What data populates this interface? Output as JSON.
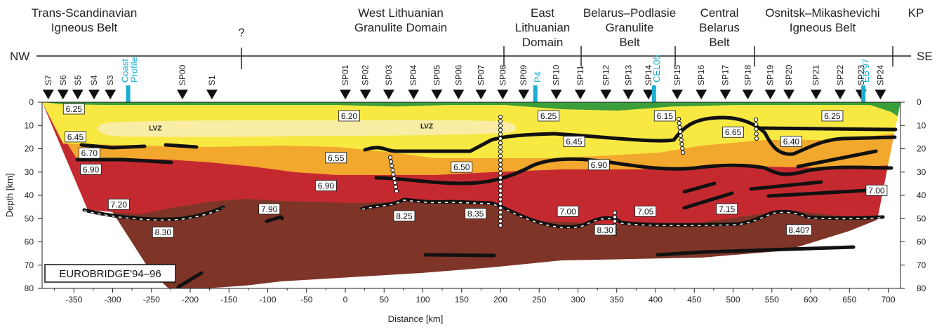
{
  "provinces": [
    {
      "line1": "Trans-Scandinavian",
      "line2": "Igneous Belt",
      "line3": ""
    },
    {
      "line1": "?",
      "line2": "",
      "line3": ""
    },
    {
      "line1": "West Lithuanian",
      "line2": "Granulite Domain",
      "line3": ""
    },
    {
      "line1": "East",
      "line2": "Lithuanian",
      "line3": "Domain"
    },
    {
      "line1": "Belarus–Podlasie",
      "line2": "Granulite",
      "line3": "Belt"
    },
    {
      "line1": "Central",
      "line2": "Belarus",
      "line3": "Belt"
    },
    {
      "line1": "Osnitsk–Mikashevichi",
      "line2": "Igneous Belt",
      "line3": ""
    },
    {
      "line1": "KP",
      "line2": "",
      "line3": ""
    }
  ],
  "direction": {
    "left": "NW",
    "right": "SE"
  },
  "shotpoints": [
    {
      "label": "S7",
      "x": -383,
      "cyan": false
    },
    {
      "label": "S6",
      "x": -364,
      "cyan": false
    },
    {
      "label": "S5",
      "x": -345,
      "cyan": false
    },
    {
      "label": "S4",
      "x": -324,
      "cyan": false
    },
    {
      "label": "S3",
      "x": -303,
      "cyan": false
    },
    {
      "label": "SP00",
      "x": -210,
      "cyan": false
    },
    {
      "label": "S1",
      "x": -172,
      "cyan": false
    },
    {
      "label": "SP01",
      "x": 0,
      "cyan": false
    },
    {
      "label": "SP02",
      "x": 26,
      "cyan": false
    },
    {
      "label": "SP03",
      "x": 56,
      "cyan": false
    },
    {
      "label": "SP04",
      "x": 88,
      "cyan": false
    },
    {
      "label": "SP05",
      "x": 118,
      "cyan": false
    },
    {
      "label": "SP06",
      "x": 146,
      "cyan": false
    },
    {
      "label": "SP07",
      "x": 175,
      "cyan": false
    },
    {
      "label": "SP08",
      "x": 203,
      "cyan": false
    },
    {
      "label": "SP09",
      "x": 230,
      "cyan": false
    },
    {
      "label": "SP10",
      "x": 272,
      "cyan": false
    },
    {
      "label": "SP11",
      "x": 303,
      "cyan": false
    },
    {
      "label": "SP12",
      "x": 336,
      "cyan": false
    },
    {
      "label": "SP13",
      "x": 365,
      "cyan": false
    },
    {
      "label": "SP14",
      "x": 391,
      "cyan": false
    },
    {
      "label": "SP15",
      "x": 428,
      "cyan": false
    },
    {
      "label": "SP16",
      "x": 459,
      "cyan": false
    },
    {
      "label": "SP17",
      "x": 490,
      "cyan": false
    },
    {
      "label": "SP18",
      "x": 519,
      "cyan": false
    },
    {
      "label": "SP19",
      "x": 548,
      "cyan": false
    },
    {
      "label": "SP20",
      "x": 572,
      "cyan": false
    },
    {
      "label": "SP21",
      "x": 607,
      "cyan": false
    },
    {
      "label": "SP22",
      "x": 638,
      "cyan": false
    },
    {
      "label": "SP23",
      "x": 665,
      "cyan": false
    },
    {
      "label": "SP24",
      "x": 690,
      "cyan": false
    }
  ],
  "cyan_shotpoints": [
    {
      "line1": "Coast",
      "line2": "Profile",
      "x": -280
    },
    {
      "line1": "P4",
      "line2": "",
      "x": 245
    },
    {
      "line1": "CEL05",
      "line2": "",
      "x": 398
    },
    {
      "line1": "EB'97",
      "line2": "",
      "x": 668
    }
  ],
  "velocities": [
    {
      "text": "6.25",
      "x": -350,
      "depth": 3
    },
    {
      "text": "6.20",
      "x": 5,
      "depth": 6
    },
    {
      "text": "6.25",
      "x": 262,
      "depth": 6
    },
    {
      "text": "6.15",
      "x": 412,
      "depth": 6
    },
    {
      "text": "6.25",
      "x": 628,
      "depth": 6
    },
    {
      "text": "6.45",
      "x": -348,
      "depth": 15
    },
    {
      "text": "6.65",
      "x": 500,
      "depth": 13
    },
    {
      "text": "6.40",
      "x": 575,
      "depth": 17
    },
    {
      "text": "6.70",
      "x": -330,
      "depth": 22
    },
    {
      "text": "6.45",
      "x": 295,
      "depth": 17
    },
    {
      "text": "6.55",
      "x": -12,
      "depth": 24
    },
    {
      "text": "6.90",
      "x": -328,
      "depth": 29
    },
    {
      "text": "6.50",
      "x": 150,
      "depth": 28
    },
    {
      "text": "6.90",
      "x": 327,
      "depth": 27
    },
    {
      "text": "6.90",
      "x": -25,
      "depth": 36
    },
    {
      "text": "7.00",
      "x": 685,
      "depth": 38
    },
    {
      "text": "7.20",
      "x": -292,
      "depth": 44
    },
    {
      "text": "7.90",
      "x": -98,
      "depth": 46
    },
    {
      "text": "7.00",
      "x": 287,
      "depth": 47
    },
    {
      "text": "7.05",
      "x": 387,
      "depth": 47
    },
    {
      "text": "7.15",
      "x": 492,
      "depth": 46
    },
    {
      "text": "8.25",
      "x": 76,
      "depth": 49
    },
    {
      "text": "8.35",
      "x": 168,
      "depth": 48
    },
    {
      "text": "8.30",
      "x": -235,
      "depth": 56
    },
    {
      "text": "8.30",
      "x": 335,
      "depth": 55
    },
    {
      "text": "8.40?",
      "x": 585,
      "depth": 55
    }
  ],
  "lvz": [
    {
      "text": "LVZ",
      "x": -245,
      "depth": 11
    },
    {
      "text": "LVZ",
      "x": 105,
      "depth": 10
    }
  ],
  "title": "EUROBRIDGE'94–96",
  "axes": {
    "xlabel": "Distance  [km]",
    "ylabel": "Depth  [km]",
    "xticks": [
      -350,
      -300,
      -250,
      -200,
      -150,
      -100,
      -50,
      0,
      50,
      100,
      150,
      200,
      250,
      300,
      350,
      400,
      450,
      500,
      550,
      600,
      650,
      700
    ],
    "yticks": [
      0,
      10,
      20,
      30,
      40,
      50,
      60,
      70,
      80
    ],
    "xlim": [
      -395,
      710
    ],
    "ylim": [
      0,
      80
    ]
  },
  "colors": {
    "green": "#3a9e3a",
    "yellow": "#f7e842",
    "lvz": "#f9eda6",
    "orange": "#f2a72d",
    "red": "#c52930",
    "brown": "#7e3528",
    "cyan": "#1aaed0"
  }
}
